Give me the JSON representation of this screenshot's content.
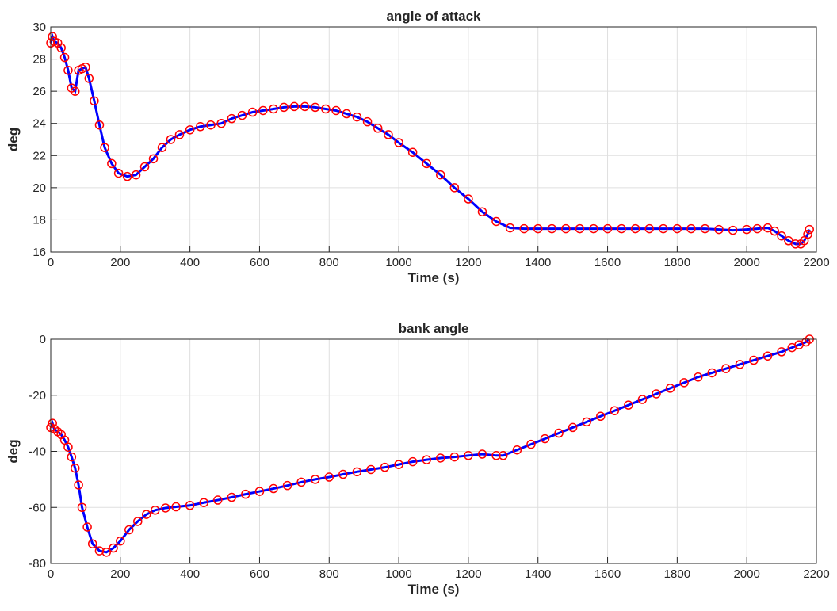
{
  "chart_data": [
    {
      "type": "line",
      "title": "angle of attack",
      "xlabel": "Time (s)",
      "ylabel": "deg",
      "x": [
        0,
        5,
        10,
        20,
        30,
        40,
        50,
        60,
        70,
        80,
        90,
        100,
        110,
        125,
        140,
        155,
        175,
        195,
        220,
        245,
        270,
        295,
        320,
        345,
        370,
        400,
        430,
        460,
        490,
        520,
        550,
        580,
        610,
        640,
        670,
        700,
        730,
        760,
        790,
        820,
        850,
        880,
        910,
        940,
        970,
        1000,
        1040,
        1080,
        1120,
        1160,
        1200,
        1240,
        1280,
        1320,
        1360,
        1400,
        1440,
        1480,
        1520,
        1560,
        1600,
        1640,
        1680,
        1720,
        1760,
        1800,
        1840,
        1880,
        1920,
        1960,
        2000,
        2030,
        2060,
        2080,
        2100,
        2120,
        2140,
        2155,
        2165,
        2175,
        2180
      ],
      "series": [
        {
          "color": "#0000ff",
          "marker_color": "#ff0000",
          "values": [
            29,
            29.4,
            29.1,
            29,
            28.7,
            28.1,
            27.3,
            26.2,
            26.0,
            27.3,
            27.4,
            27.5,
            26.8,
            25.4,
            23.9,
            22.5,
            21.5,
            20.9,
            20.7,
            20.8,
            21.3,
            21.8,
            22.5,
            23.0,
            23.3,
            23.6,
            23.8,
            23.9,
            24.0,
            24.3,
            24.5,
            24.7,
            24.8,
            24.9,
            25.0,
            25.05,
            25.05,
            25.0,
            24.9,
            24.8,
            24.6,
            24.4,
            24.1,
            23.7,
            23.3,
            22.8,
            22.2,
            21.5,
            20.8,
            20.0,
            19.3,
            18.5,
            17.9,
            17.5,
            17.45,
            17.45,
            17.45,
            17.45,
            17.45,
            17.45,
            17.45,
            17.45,
            17.45,
            17.45,
            17.45,
            17.45,
            17.45,
            17.45,
            17.4,
            17.35,
            17.4,
            17.45,
            17.5,
            17.3,
            17.0,
            16.7,
            16.5,
            16.5,
            16.7,
            17.1,
            17.4
          ]
        }
      ],
      "xlim": [
        0,
        2200
      ],
      "xticks": [
        0,
        200,
        400,
        600,
        800,
        1000,
        1200,
        1400,
        1600,
        1800,
        2000,
        2200
      ],
      "ylim": [
        16,
        30
      ],
      "yticks": [
        16,
        18,
        20,
        22,
        24,
        26,
        28,
        30
      ],
      "grid": true
    },
    {
      "type": "line",
      "title": "bank angle",
      "xlabel": "Time (s)",
      "ylabel": "deg",
      "x": [
        0,
        5,
        10,
        20,
        30,
        40,
        50,
        60,
        70,
        80,
        90,
        105,
        120,
        140,
        160,
        180,
        200,
        225,
        250,
        275,
        300,
        330,
        360,
        400,
        440,
        480,
        520,
        560,
        600,
        640,
        680,
        720,
        760,
        800,
        840,
        880,
        920,
        960,
        1000,
        1040,
        1080,
        1120,
        1160,
        1200,
        1240,
        1280,
        1300,
        1340,
        1380,
        1420,
        1460,
        1500,
        1540,
        1580,
        1620,
        1660,
        1700,
        1740,
        1780,
        1820,
        1860,
        1900,
        1940,
        1980,
        2020,
        2060,
        2100,
        2130,
        2150,
        2170,
        2180
      ],
      "series": [
        {
          "color": "#0000ff",
          "marker_color": "#ff0000",
          "values": [
            -31.5,
            -30,
            -32,
            -33,
            -34,
            -36,
            -38.5,
            -42,
            -46,
            -52,
            -60,
            -67,
            -73,
            -75.5,
            -76,
            -74.5,
            -72,
            -68,
            -65,
            -62.5,
            -61,
            -60.2,
            -59.8,
            -59.3,
            -58.3,
            -57.4,
            -56.4,
            -55.3,
            -54.3,
            -53.3,
            -52.2,
            -51.0,
            -50.0,
            -49.2,
            -48.2,
            -47.3,
            -46.5,
            -45.7,
            -44.7,
            -43.7,
            -43.0,
            -42.4,
            -42.0,
            -41.5,
            -41.0,
            -41.5,
            -41.5,
            -39.5,
            -37.5,
            -35.5,
            -33.5,
            -31.5,
            -29.5,
            -27.5,
            -25.5,
            -23.5,
            -21.5,
            -19.5,
            -17.5,
            -15.5,
            -13.5,
            -12,
            -10.5,
            -9,
            -7.5,
            -6,
            -4.5,
            -3,
            -2,
            -1,
            0
          ]
        }
      ],
      "xlim": [
        0,
        2200
      ],
      "xticks": [
        0,
        200,
        400,
        600,
        800,
        1000,
        1200,
        1400,
        1600,
        1800,
        2000,
        2200
      ],
      "ylim": [
        -80,
        0
      ],
      "yticks": [
        -80,
        -60,
        -40,
        -20,
        0
      ],
      "grid": true
    }
  ]
}
